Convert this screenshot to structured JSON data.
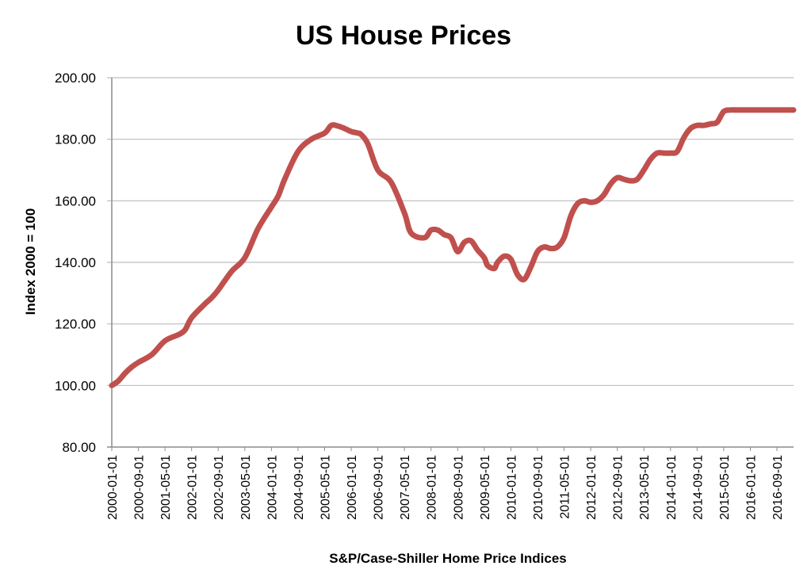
{
  "chart_data": {
    "type": "line",
    "title": "US House Prices",
    "xlabel": "S&P/Case-Shiller Home Price Indices",
    "ylabel": "Index 2000 = 100",
    "ylim": [
      80,
      200
    ],
    "yticks": [
      "80.00",
      "100.00",
      "120.00",
      "140.00",
      "160.00",
      "180.00",
      "200.00"
    ],
    "grid": true,
    "line_color": "#c0504d",
    "x_tick_labels": [
      "2000-01-01",
      "2000-09-01",
      "2001-05-01",
      "2002-01-01",
      "2002-09-01",
      "2003-05-01",
      "2004-01-01",
      "2004-09-01",
      "2005-05-01",
      "2006-01-01",
      "2006-09-01",
      "2007-05-01",
      "2008-01-01",
      "2008-09-01",
      "2009-05-01",
      "2010-01-01",
      "2010-09-01",
      "2011-05-01",
      "2012-01-01",
      "2012-09-01",
      "2013-05-01",
      "2014-01-01",
      "2014-09-01",
      "2015-05-01",
      "2016-01-01",
      "2016-09-01"
    ],
    "x_range_months": [
      0,
      205
    ],
    "series": [
      {
        "name": "S&P/Case-Shiller Home Price Index",
        "x_months": [
          0,
          2,
          4,
          6,
          8,
          12,
          16,
          20,
          22,
          24,
          28,
          30,
          32,
          36,
          40,
          44,
          48,
          50,
          52,
          56,
          60,
          64,
          66,
          68,
          70,
          72,
          74,
          75,
          77,
          80,
          84,
          88,
          90,
          94,
          96,
          98,
          100,
          102,
          104,
          106,
          108,
          110,
          112,
          113,
          115,
          116,
          118,
          120,
          122,
          124,
          126,
          128,
          130,
          132,
          134,
          136,
          138,
          140,
          142,
          144,
          146,
          148,
          150,
          152,
          154,
          156,
          158,
          160,
          162,
          164,
          166,
          168,
          170,
          172,
          174,
          176,
          178,
          180,
          182,
          184,
          186,
          188,
          190,
          192,
          194,
          196,
          198,
          200,
          202,
          204,
          205
        ],
        "values": [
          100,
          101.5,
          104,
          106,
          107.5,
          110,
          114.5,
          116.5,
          118,
          122,
          126.5,
          128.5,
          131,
          137,
          141.5,
          151,
          158,
          161.5,
          167,
          176,
          180,
          182,
          184.5,
          184.3,
          183.5,
          182.5,
          182,
          181.5,
          178.5,
          170,
          166,
          156,
          149.5,
          148,
          150.5,
          150.5,
          149,
          148,
          143.5,
          146.5,
          147,
          144,
          141.5,
          139,
          138,
          140,
          142,
          141,
          136,
          134.5,
          138.5,
          143.5,
          145,
          144.5,
          145,
          148,
          155,
          159,
          160,
          159.5,
          160,
          162,
          165.5,
          167.5,
          167,
          166.5,
          167,
          170,
          173.5,
          175.5,
          175.5,
          175.5,
          176,
          180.5,
          183.5,
          184.5,
          184.5,
          185,
          185.5,
          189,
          189.5,
          189.5,
          189.5,
          189.5,
          189.5,
          189.5,
          189.5,
          189.5,
          189.5,
          189.5,
          189.5
        ]
      }
    ]
  }
}
